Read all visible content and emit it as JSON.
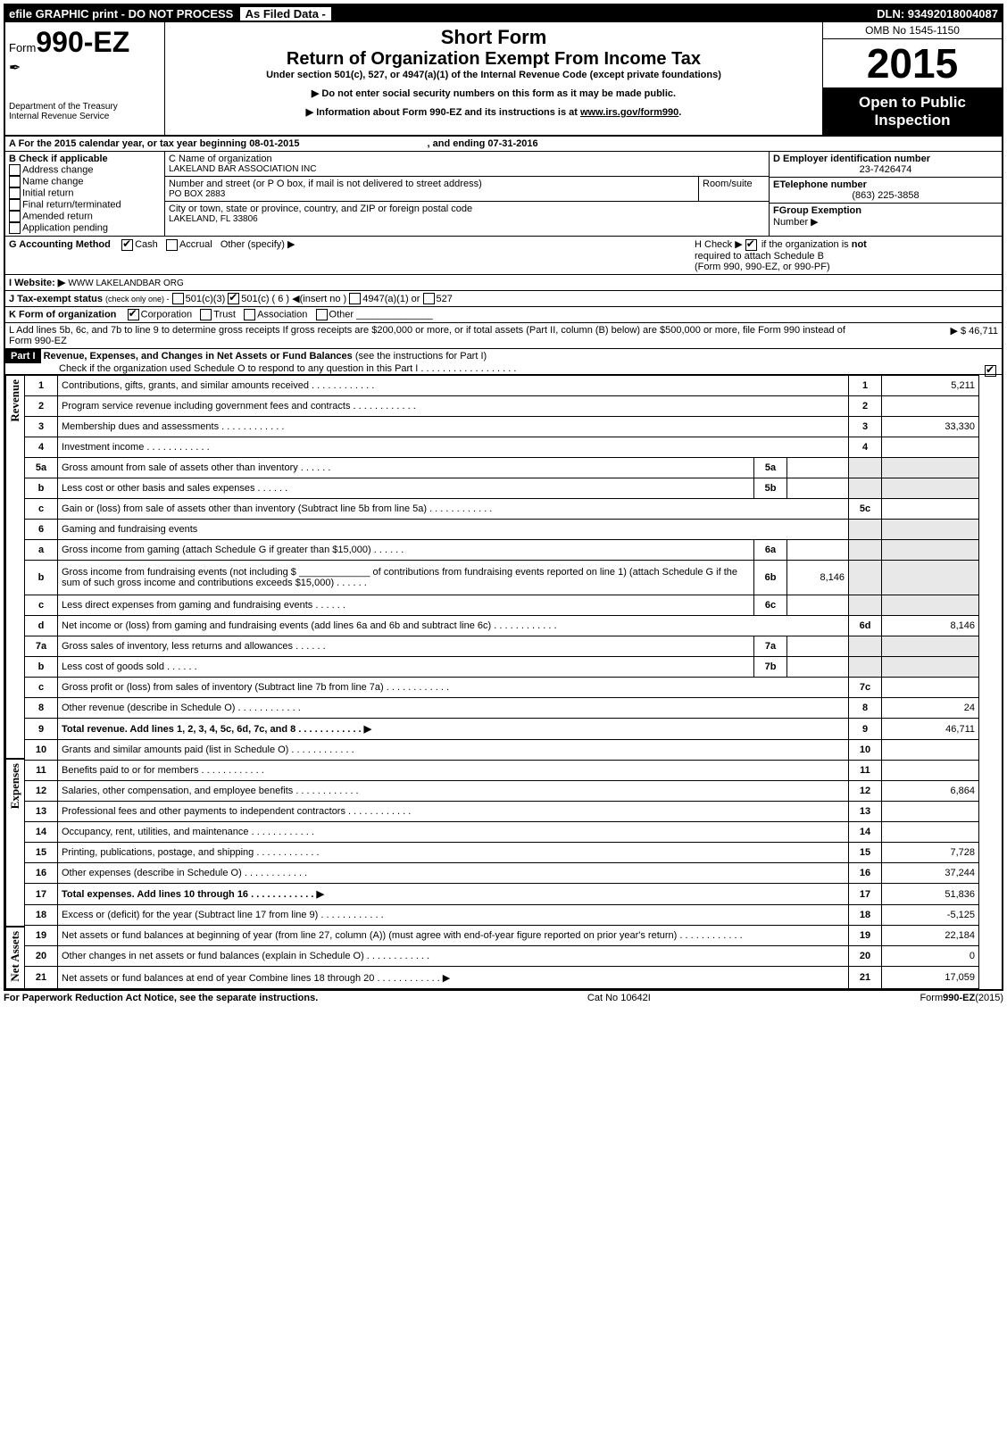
{
  "topbar": {
    "left": "efile GRAPHIC print - DO NOT PROCESS",
    "mid": "As Filed Data -",
    "right": "DLN: 93492018004087"
  },
  "header": {
    "form_prefix": "Form",
    "form_number": "990-EZ",
    "dept1": "Department of the Treasury",
    "dept2": "Internal Revenue Service",
    "shortform": "Short Form",
    "title": "Return of Organization Exempt From Income Tax",
    "subtitle": "Under section 501(c), 527, or 4947(a)(1) of the Internal Revenue Code (except private foundations)",
    "note1": "▶ Do not enter social security numbers on this form as it may be made public.",
    "note2": "▶ Information about Form 990-EZ and its instructions is at ",
    "note2_link": "www.irs.gov/form990",
    "omb": "OMB No 1545-1150",
    "year": "2015",
    "open1": "Open to Public",
    "open2": "Inspection"
  },
  "A": {
    "text": "A  For the 2015 calendar year, or tax year beginning 08-01-2015",
    "ending": ", and ending 07-31-2016"
  },
  "B": {
    "title": "B  Check if applicable",
    "items": [
      "Address change",
      "Name change",
      "Initial return",
      "Final return/terminated",
      "Amended return",
      "Application pending"
    ]
  },
  "C": {
    "name_lbl": "C Name of organization",
    "name": "LAKELAND BAR ASSOCIATION INC",
    "addr_lbl": "Number and street (or P O box, if mail is not delivered to street address)",
    "room_lbl": "Room/suite",
    "addr": "PO BOX 2883",
    "city_lbl": "City or town, state or province, country, and ZIP or foreign postal code",
    "city": "LAKELAND, FL  33806"
  },
  "D": {
    "lbl": "D Employer identification number",
    "val": "23-7426474"
  },
  "E": {
    "lbl": "ETelephone number",
    "val": "(863) 225-3858"
  },
  "F": {
    "lbl": "FGroup Exemption",
    "lbl2": "Number   ▶"
  },
  "G": {
    "lbl": "G Accounting Method",
    "cash": "Cash",
    "accrual": "Accrual",
    "other": "Other (specify) ▶"
  },
  "H": {
    "text": "H   Check ▶",
    "text2": " if the organization is ",
    "not": "not",
    "text3": "required to attach Schedule B",
    "text4": "(Form 990, 990-EZ, or 990-PF)"
  },
  "I": {
    "lbl": "I Website: ▶",
    "val": "WWW LAKELANDBAR ORG"
  },
  "J": {
    "lbl": "J Tax-exempt status",
    "note": "(check only one) -",
    "o1": "501(c)(3)",
    "o2": "501(c) (  6  ) ◀(insert no )",
    "o3": "4947(a)(1) or",
    "o4": "527"
  },
  "K": {
    "lbl": "K Form of organization",
    "o1": "Corporation",
    "o2": "Trust",
    "o3": "Association",
    "o4": "Other"
  },
  "L": {
    "text": "L Add lines 5b, 6c, and 7b to line 9 to determine gross receipts  If gross receipts are $200,000 or more, or if total assets (Part II, column (B) below) are $500,000 or more, file Form 990 instead of Form 990-EZ",
    "val": "▶ $ 46,711"
  },
  "PartI": {
    "title": "Revenue, Expenses, and Changes in Net Assets or Fund Balances",
    "sub": "(see the instructions for Part I)",
    "check": "Check if the organization used Schedule O to respond to any question in this Part I  .  .  .  .  .  .  .  .  .  .  .  .  .  .  .  .  .  ."
  },
  "sideLabels": {
    "rev": "Revenue",
    "exp": "Expenses",
    "na": "Net Assets"
  },
  "lines": [
    {
      "n": "1",
      "t": "Contributions, gifts, grants, and similar amounts received",
      "box": "1",
      "v": "5,211"
    },
    {
      "n": "2",
      "t": "Program service revenue including government fees and contracts",
      "box": "2",
      "v": ""
    },
    {
      "n": "3",
      "t": "Membership dues and assessments",
      "box": "3",
      "v": "33,330"
    },
    {
      "n": "4",
      "t": "Investment income",
      "box": "4",
      "v": ""
    },
    {
      "n": "5a",
      "t": "Gross amount from sale of assets other than inventory",
      "inner": "5a",
      "iv": ""
    },
    {
      "n": "b",
      "t": "Less  cost or other basis and sales expenses",
      "inner": "5b",
      "iv": ""
    },
    {
      "n": "c",
      "t": "Gain or (loss) from sale of assets other than inventory (Subtract line 5b from line 5a)",
      "box": "5c",
      "v": ""
    },
    {
      "n": "6",
      "t": "Gaming and fundraising events"
    },
    {
      "n": "a",
      "t": "Gross income from gaming (attach Schedule G if greater than $15,000)",
      "inner": "6a",
      "iv": ""
    },
    {
      "n": "b",
      "t": "Gross income from fundraising events (not including $ _____________ of contributions from fundraising events reported on line 1) (attach Schedule G if the sum of such gross income and contributions exceeds $15,000)",
      "inner": "6b",
      "iv": "8,146"
    },
    {
      "n": "c",
      "t": "Less  direct expenses from gaming and fundraising events",
      "inner": "6c",
      "iv": ""
    },
    {
      "n": "d",
      "t": "Net income or (loss) from gaming and fundraising events (add lines 6a and 6b and subtract line 6c)",
      "box": "6d",
      "v": "8,146"
    },
    {
      "n": "7a",
      "t": "Gross sales of inventory, less returns and allowances",
      "inner": "7a",
      "iv": ""
    },
    {
      "n": "b",
      "t": "Less  cost of goods sold",
      "inner": "7b",
      "iv": ""
    },
    {
      "n": "c",
      "t": "Gross profit or (loss) from sales of inventory (Subtract line 7b from line 7a)",
      "box": "7c",
      "v": ""
    },
    {
      "n": "8",
      "t": "Other revenue (describe in Schedule O)",
      "box": "8",
      "v": "24"
    },
    {
      "n": "9",
      "t": "Total revenue. Add lines 1, 2, 3, 4, 5c, 6d, 7c, and 8",
      "box": "9",
      "v": "46,711",
      "bold": true,
      "arrow": true
    },
    {
      "n": "10",
      "t": "Grants and similar amounts paid (list in Schedule O)",
      "box": "10",
      "v": ""
    },
    {
      "n": "11",
      "t": "Benefits paid to or for members",
      "box": "11",
      "v": ""
    },
    {
      "n": "12",
      "t": "Salaries, other compensation, and employee benefits",
      "box": "12",
      "v": "6,864"
    },
    {
      "n": "13",
      "t": "Professional fees and other payments to independent contractors",
      "box": "13",
      "v": ""
    },
    {
      "n": "14",
      "t": "Occupancy, rent, utilities, and maintenance",
      "box": "14",
      "v": ""
    },
    {
      "n": "15",
      "t": "Printing, publications, postage, and shipping",
      "box": "15",
      "v": "7,728"
    },
    {
      "n": "16",
      "t": "Other expenses (describe in Schedule O)",
      "box": "16",
      "v": "37,244"
    },
    {
      "n": "17",
      "t": "Total expenses. Add lines 10 through 16",
      "box": "17",
      "v": "51,836",
      "bold": true,
      "arrow": true
    },
    {
      "n": "18",
      "t": "Excess or (deficit) for the year (Subtract line 17 from line 9)",
      "box": "18",
      "v": "-5,125"
    },
    {
      "n": "19",
      "t": "Net assets or fund balances at beginning of year (from line 27, column (A)) (must agree with end-of-year figure reported on prior year's return)",
      "box": "19",
      "v": "22,184"
    },
    {
      "n": "20",
      "t": "Other changes in net assets or fund balances (explain in Schedule O)",
      "box": "20",
      "v": "0"
    },
    {
      "n": "21",
      "t": "Net assets or fund balances at end of year  Combine lines 18 through 20",
      "box": "21",
      "v": "17,059",
      "arrow": true
    }
  ],
  "footer": {
    "left": "For Paperwork Reduction Act Notice, see the separate instructions.",
    "mid": "Cat No 10642I",
    "right": "Form",
    "right2": "990-EZ",
    "right3": "(2015)"
  }
}
